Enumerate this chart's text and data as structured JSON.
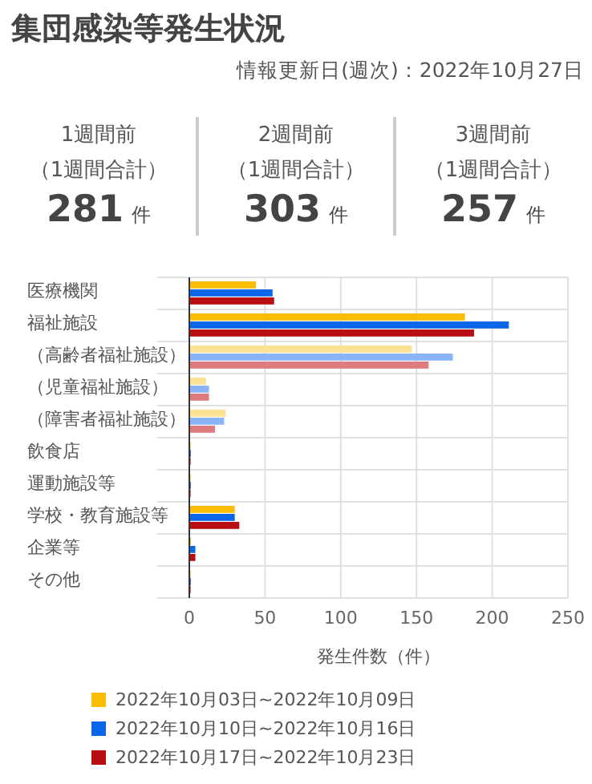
{
  "chart_data": [
    {
      "type": "other",
      "title": "集団感染等発生状況",
      "subtitle": "情報更新日(週次)：2022年10月27日",
      "annotations": [
        "1週間前",
        "（1週間合計）",
        "281",
        "件",
        "2週間前",
        "（1週間合計）",
        "303",
        "件",
        "3週間前",
        "（1週間合計）",
        "257",
        "件"
      ]
    },
    {
      "type": "bar",
      "orientation": "horizontal",
      "categories": [
        "医療機関",
        "福祉施設",
        "（高齢者福祉施設）",
        "（児童福祉施設）",
        "（障害者福祉施設）",
        "飲食店",
        "運動施設等",
        "学校・教育施設等",
        "企業等",
        "その他"
      ],
      "series": [
        {
          "name": "2022年10月03日~2022年10月09日",
          "color": "#fbbc04",
          "values": [
            44,
            182,
            147,
            11,
            24,
            0,
            0,
            30,
            1,
            0
          ],
          "colors": [
            "#fbbc04",
            "#fbbc04",
            "#fde293",
            "#fde293",
            "#fde293",
            "#fbbc04",
            "#fbbc04",
            "#fbbc04",
            "#fbbc04",
            "#fbbc04"
          ]
        },
        {
          "name": "2022年10月10日~2022年10月16日",
          "color": "#0b67e8",
          "values": [
            55,
            211,
            174,
            13,
            23,
            1,
            1,
            30,
            4,
            1
          ],
          "colors": [
            "#0b67e8",
            "#0b67e8",
            "#8ab4f8",
            "#8ab4f8",
            "#8ab4f8",
            "#0b67e8",
            "#0b67e8",
            "#0b67e8",
            "#0b67e8",
            "#0b67e8"
          ]
        },
        {
          "name": "2022年10月17日~2022年10月23日",
          "color": "#b80d12",
          "values": [
            56,
            188,
            158,
            13,
            17,
            0,
            0,
            33,
            4,
            0
          ],
          "colors": [
            "#b80d12",
            "#b80d12",
            "#e07b7f",
            "#e07b7f",
            "#e07b7f",
            "#b80d12",
            "#b80d12",
            "#b80d12",
            "#b80d12",
            "#b80d12"
          ]
        }
      ],
      "xlim": [
        0,
        250
      ],
      "xticks": [
        0,
        50,
        100,
        150,
        200,
        250
      ],
      "xlabel": "発生件数（件）",
      "grid": true,
      "legend": "bottom"
    }
  ]
}
